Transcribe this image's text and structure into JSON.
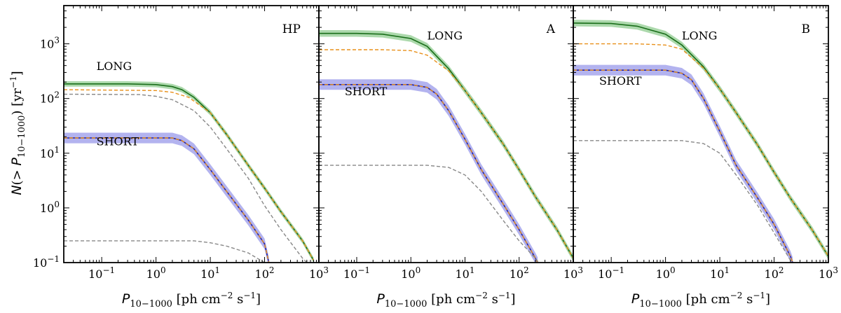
{
  "chart_data": [
    {
      "type": "line",
      "panel_label": "HP",
      "xlabel": "P10−1000 [ph cm−2 s−1]",
      "ylabel": "N(>P10−1000) [yr−1]",
      "x_scale": "log",
      "y_scale": "log",
      "xlim": [
        0.02,
        1000
      ],
      "ylim": [
        0.1,
        5000
      ],
      "annotations": [
        {
          "text": "LONG",
          "x": 0.08,
          "y": 330
        },
        {
          "text": "SHORT",
          "x": 0.08,
          "y": 14
        }
      ],
      "series": [
        {
          "role": "long_median",
          "color": "#1a6e1a",
          "band_color": "#7fc47f",
          "band_factor": 1.12,
          "points": [
            [
              0.02,
              185
            ],
            [
              0.3,
              185
            ],
            [
              1,
              180
            ],
            [
              2,
              165
            ],
            [
              3,
              145
            ],
            [
              5,
              105
            ],
            [
              10,
              55
            ],
            [
              20,
              22
            ],
            [
              50,
              6
            ],
            [
              100,
              2.3
            ],
            [
              200,
              0.85
            ],
            [
              500,
              0.25
            ],
            [
              800,
              0.11
            ]
          ]
        },
        {
          "role": "short_median",
          "color": "#2222aa",
          "band_color": "#8a8ae6",
          "band_factor": 1.25,
          "points": [
            [
              0.02,
              19
            ],
            [
              2,
              19
            ],
            [
              3,
              17
            ],
            [
              5,
              12
            ],
            [
              10,
              5
            ],
            [
              20,
              2
            ],
            [
              50,
              0.6
            ],
            [
              100,
              0.22
            ],
            [
              120,
              0.1
            ]
          ]
        },
        {
          "role": "long_component_orange",
          "color": "#e8901a",
          "dashed": true,
          "points": [
            [
              0.02,
              145
            ],
            [
              1,
              140
            ],
            [
              2,
              130
            ],
            [
              4,
              105
            ],
            [
              10,
              55
            ],
            [
              20,
              22
            ],
            [
              50,
              6
            ],
            [
              100,
              2.3
            ],
            [
              200,
              0.85
            ],
            [
              500,
              0.25
            ],
            [
              800,
              0.11
            ]
          ]
        },
        {
          "role": "long_component_grey",
          "color": "#888888",
          "dashed": true,
          "points": [
            [
              0.02,
              120
            ],
            [
              0.5,
              118
            ],
            [
              1,
              110
            ],
            [
              2,
              95
            ],
            [
              5,
              60
            ],
            [
              10,
              30
            ],
            [
              20,
              12
            ],
            [
              50,
              3.5
            ],
            [
              100,
              1.1
            ],
            [
              200,
              0.4
            ],
            [
              500,
              0.12
            ],
            [
              600,
              0.1
            ]
          ]
        },
        {
          "role": "short_component_orange",
          "color": "#e8901a",
          "dashed": true,
          "points": [
            [
              0.02,
              19
            ],
            [
              2,
              19
            ],
            [
              3,
              17
            ],
            [
              5,
              12
            ],
            [
              10,
              5
            ],
            [
              20,
              2
            ],
            [
              50,
              0.6
            ],
            [
              100,
              0.22
            ],
            [
              120,
              0.1
            ]
          ]
        },
        {
          "role": "short_component_grey",
          "color": "#888888",
          "dashed": true,
          "points": [
            [
              0.02,
              0.25
            ],
            [
              5,
              0.25
            ],
            [
              10,
              0.23
            ],
            [
              20,
              0.2
            ],
            [
              50,
              0.15
            ],
            [
              100,
              0.1
            ]
          ]
        }
      ]
    },
    {
      "type": "line",
      "panel_label": "A",
      "xlabel": "P10−1000 [ph cm−2 s−1]",
      "x_scale": "log",
      "y_scale": "log",
      "xlim": [
        0.02,
        1000
      ],
      "ylim": [
        0.1,
        5000
      ],
      "annotations": [
        {
          "text": "LONG",
          "x": 2,
          "y": 1200
        },
        {
          "text": "SHORT",
          "x": 0.06,
          "y": 115
        }
      ],
      "series": [
        {
          "role": "long_median",
          "color": "#1a6e1a",
          "band_color": "#7fc47f",
          "band_factor": 1.15,
          "points": [
            [
              0.02,
              1550
            ],
            [
              0.1,
              1550
            ],
            [
              0.3,
              1500
            ],
            [
              1,
              1250
            ],
            [
              2,
              900
            ],
            [
              5,
              350
            ],
            [
              10,
              140
            ],
            [
              20,
              55
            ],
            [
              50,
              15
            ],
            [
              100,
              5
            ],
            [
              200,
              1.6
            ],
            [
              500,
              0.4
            ],
            [
              1000,
              0.12
            ]
          ]
        },
        {
          "role": "short_median",
          "color": "#2222aa",
          "band_color": "#8a8ae6",
          "band_factor": 1.25,
          "points": [
            [
              0.02,
              180
            ],
            [
              1,
              180
            ],
            [
              2,
              160
            ],
            [
              3,
              120
            ],
            [
              5,
              60
            ],
            [
              10,
              18
            ],
            [
              20,
              5
            ],
            [
              50,
              1.2
            ],
            [
              100,
              0.4
            ],
            [
              200,
              0.12
            ],
            [
              220,
              0.1
            ]
          ]
        },
        {
          "role": "long_component_orange",
          "color": "#e8901a",
          "dashed": true,
          "points": [
            [
              0.02,
              780
            ],
            [
              0.3,
              780
            ],
            [
              1,
              750
            ],
            [
              2,
              620
            ],
            [
              5,
              320
            ],
            [
              10,
              140
            ],
            [
              20,
              55
            ],
            [
              50,
              15
            ],
            [
              100,
              5
            ],
            [
              200,
              1.6
            ],
            [
              500,
              0.4
            ],
            [
              1000,
              0.12
            ]
          ]
        },
        {
          "role": "short_component_orange",
          "color": "#e8901a",
          "dashed": true,
          "points": [
            [
              0.02,
              180
            ],
            [
              1,
              180
            ],
            [
              2,
              160
            ],
            [
              3,
              120
            ],
            [
              5,
              60
            ],
            [
              10,
              18
            ],
            [
              20,
              5
            ],
            [
              50,
              1.2
            ],
            [
              100,
              0.4
            ],
            [
              200,
              0.12
            ],
            [
              220,
              0.1
            ]
          ]
        },
        {
          "role": "grey_component",
          "color": "#888888",
          "dashed": true,
          "points": [
            [
              0.02,
              6
            ],
            [
              2,
              6
            ],
            [
              5,
              5.5
            ],
            [
              10,
              4
            ],
            [
              20,
              2
            ],
            [
              50,
              0.6
            ],
            [
              100,
              0.25
            ],
            [
              200,
              0.12
            ],
            [
              230,
              0.1
            ]
          ]
        }
      ]
    },
    {
      "type": "line",
      "panel_label": "B",
      "xlabel": "P10−1000 [ph cm−2 s−1]",
      "x_scale": "log",
      "y_scale": "log",
      "xlim": [
        0.02,
        1000
      ],
      "ylim": [
        0.1,
        5000
      ],
      "annotations": [
        {
          "text": "LONG",
          "x": 2,
          "y": 1200
        },
        {
          "text": "SHORT",
          "x": 0.06,
          "y": 180
        }
      ],
      "series": [
        {
          "role": "long_median",
          "color": "#1a6e1a",
          "band_color": "#7fc47f",
          "band_factor": 1.15,
          "points": [
            [
              0.02,
              2400
            ],
            [
              0.1,
              2350
            ],
            [
              0.3,
              2100
            ],
            [
              1,
              1500
            ],
            [
              2,
              950
            ],
            [
              5,
              380
            ],
            [
              10,
              150
            ],
            [
              20,
              55
            ],
            [
              50,
              14
            ],
            [
              100,
              4.5
            ],
            [
              200,
              1.5
            ],
            [
              500,
              0.4
            ],
            [
              1000,
              0.13
            ]
          ]
        },
        {
          "role": "short_median",
          "color": "#2222aa",
          "band_color": "#8a8ae6",
          "band_factor": 1.25,
          "points": [
            [
              0.02,
              330
            ],
            [
              1,
              330
            ],
            [
              2,
              290
            ],
            [
              3,
              220
            ],
            [
              5,
              100
            ],
            [
              10,
              25
            ],
            [
              20,
              6
            ],
            [
              50,
              1.5
            ],
            [
              100,
              0.5
            ],
            [
              200,
              0.13
            ],
            [
              220,
              0.1
            ]
          ]
        },
        {
          "role": "long_component_orange",
          "color": "#e8901a",
          "dashed": true,
          "points": [
            [
              0.02,
              1000
            ],
            [
              0.3,
              1000
            ],
            [
              1,
              950
            ],
            [
              2,
              800
            ],
            [
              5,
              360
            ],
            [
              10,
              150
            ],
            [
              20,
              55
            ],
            [
              50,
              14
            ],
            [
              100,
              4.5
            ],
            [
              200,
              1.5
            ],
            [
              500,
              0.4
            ],
            [
              1000,
              0.13
            ]
          ]
        },
        {
          "role": "short_component_orange",
          "color": "#e8901a",
          "dashed": true,
          "points": [
            [
              0.02,
              330
            ],
            [
              1,
              330
            ],
            [
              2,
              290
            ],
            [
              3,
              220
            ],
            [
              5,
              100
            ],
            [
              10,
              25
            ],
            [
              20,
              6
            ],
            [
              50,
              1.5
            ],
            [
              100,
              0.5
            ],
            [
              200,
              0.13
            ],
            [
              220,
              0.1
            ]
          ]
        },
        {
          "role": "grey_component",
          "color": "#888888",
          "dashed": true,
          "points": [
            [
              0.02,
              17
            ],
            [
              2,
              17
            ],
            [
              5,
              15
            ],
            [
              10,
              10
            ],
            [
              20,
              4
            ],
            [
              50,
              1.1
            ],
            [
              100,
              0.35
            ],
            [
              200,
              0.11
            ],
            [
              210,
              0.1
            ]
          ]
        }
      ]
    }
  ]
}
